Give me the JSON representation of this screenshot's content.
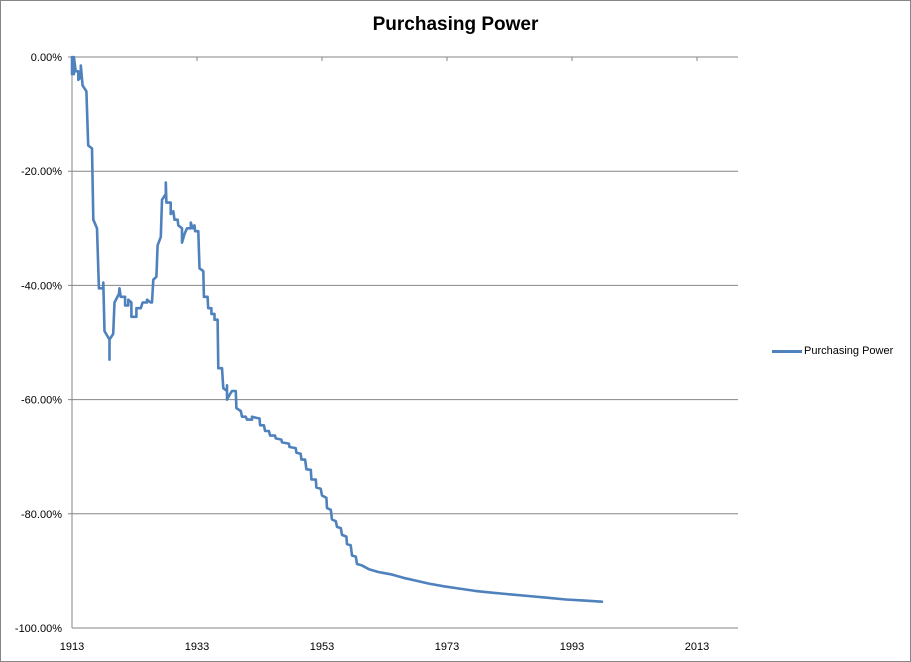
{
  "chart_data": {
    "type": "line",
    "title": "Purchasing Power",
    "xlabel": "",
    "ylabel": "",
    "xlim": [
      1913,
      2013
    ],
    "ylim": [
      -100,
      0
    ],
    "x_ticks": [
      "1913",
      "1933",
      "1953",
      "1973",
      "1993",
      "2013"
    ],
    "y_ticks": [
      "0.00%",
      "-20.00%",
      "-40.00%",
      "-60.00%",
      "-80.00%",
      "-100.00%"
    ],
    "grid": "horizontal",
    "legend_position": "right",
    "series": [
      {
        "name": "Purchasing Power",
        "color": "#4f81bd",
        "points": [
          [
            1913.0,
            0
          ],
          [
            1913.0,
            -3
          ],
          [
            1913.3,
            -3
          ],
          [
            1913.3,
            0
          ],
          [
            1913.6,
            -2.5
          ],
          [
            1914.0,
            -2.5
          ],
          [
            1914.0,
            -4
          ],
          [
            1914.4,
            -3.5
          ],
          [
            1914.4,
            -1.5
          ],
          [
            1914.7,
            -5
          ],
          [
            1915.3,
            -6
          ],
          [
            1915.6,
            -15.5
          ],
          [
            1916.2,
            -16
          ],
          [
            1916.4,
            -28.5
          ],
          [
            1917.0,
            -30
          ],
          [
            1917.3,
            -40.5
          ],
          [
            1918.0,
            -40.5
          ],
          [
            1918.0,
            -39.5
          ],
          [
            1918.2,
            -48
          ],
          [
            1919.0,
            -49.5
          ],
          [
            1919.0,
            -53
          ],
          [
            1919.0,
            -49.5
          ],
          [
            1919.6,
            -48.5
          ],
          [
            1919.8,
            -43
          ],
          [
            1920.5,
            -41.5
          ],
          [
            1920.6,
            -40.5
          ],
          [
            1920.8,
            -42
          ],
          [
            1921.5,
            -42
          ],
          [
            1921.5,
            -43.5
          ],
          [
            1922.0,
            -43.5
          ],
          [
            1922.0,
            -42.5
          ],
          [
            1922.5,
            -43
          ],
          [
            1922.5,
            -45.5
          ],
          [
            1923.3,
            -45.5
          ],
          [
            1923.3,
            -44
          ],
          [
            1924.0,
            -44
          ],
          [
            1924.3,
            -43
          ],
          [
            1925.0,
            -43
          ],
          [
            1925.0,
            -42.5
          ],
          [
            1925.6,
            -43
          ],
          [
            1925.8,
            -43
          ],
          [
            1926.0,
            -39
          ],
          [
            1926.5,
            -38.5
          ],
          [
            1926.7,
            -33
          ],
          [
            1927.2,
            -31.5
          ],
          [
            1927.4,
            -25
          ],
          [
            1928.0,
            -24
          ],
          [
            1928.0,
            -22
          ],
          [
            1928.1,
            -25.5
          ],
          [
            1928.8,
            -25.5
          ],
          [
            1928.8,
            -27.5
          ],
          [
            1929.2,
            -27
          ],
          [
            1929.4,
            -28.5
          ],
          [
            1929.9,
            -28.5
          ],
          [
            1930.0,
            -29.5
          ],
          [
            1930.6,
            -30
          ],
          [
            1930.6,
            -32.5
          ],
          [
            1931.0,
            -31
          ],
          [
            1931.4,
            -30
          ],
          [
            1932.0,
            -30
          ],
          [
            1932.0,
            -29
          ],
          [
            1932.3,
            -30
          ],
          [
            1932.6,
            -29.5
          ],
          [
            1932.7,
            -30.5
          ],
          [
            1933.2,
            -30.5
          ],
          [
            1933.4,
            -37
          ],
          [
            1934.0,
            -37.5
          ],
          [
            1934.1,
            -42
          ],
          [
            1934.7,
            -42
          ],
          [
            1934.8,
            -44
          ],
          [
            1935.3,
            -44
          ],
          [
            1935.3,
            -45
          ],
          [
            1935.8,
            -45
          ],
          [
            1935.8,
            -46
          ],
          [
            1936.3,
            -46
          ],
          [
            1936.4,
            -54.5
          ],
          [
            1937.0,
            -54.5
          ],
          [
            1937.2,
            -58
          ],
          [
            1937.8,
            -58.5
          ],
          [
            1937.8,
            -57.5
          ],
          [
            1937.8,
            -60
          ],
          [
            1938.3,
            -59
          ],
          [
            1938.6,
            -58.5
          ],
          [
            1939.2,
            -58.5
          ],
          [
            1939.3,
            -61.5
          ],
          [
            1940.0,
            -62
          ],
          [
            1940.2,
            -63
          ],
          [
            1940.8,
            -63
          ],
          [
            1941.0,
            -63.5
          ],
          [
            1941.8,
            -63.5
          ],
          [
            1941.8,
            -63
          ],
          [
            1942.5,
            -63.2
          ],
          [
            1943.0,
            -63.3
          ],
          [
            1943.1,
            -64.5
          ],
          [
            1943.7,
            -64.5
          ],
          [
            1943.9,
            -65.5
          ],
          [
            1944.5,
            -65.5
          ],
          [
            1944.7,
            -66.3
          ],
          [
            1945.5,
            -66.3
          ],
          [
            1945.6,
            -66.8
          ],
          [
            1946.5,
            -67
          ],
          [
            1946.6,
            -67.5
          ],
          [
            1947.7,
            -67.7
          ],
          [
            1947.8,
            -68.3
          ],
          [
            1948.8,
            -68.5
          ],
          [
            1948.9,
            -69.3
          ],
          [
            1949.6,
            -69.5
          ],
          [
            1949.7,
            -70.5
          ],
          [
            1950.3,
            -70.5
          ],
          [
            1950.5,
            -72.2
          ],
          [
            1951.2,
            -72.3
          ],
          [
            1951.3,
            -74
          ],
          [
            1952.0,
            -74
          ],
          [
            1952.1,
            -75.4
          ],
          [
            1952.8,
            -75.6
          ],
          [
            1953.0,
            -76.8
          ],
          [
            1953.7,
            -77.2
          ],
          [
            1953.8,
            -79
          ],
          [
            1954.4,
            -79.3
          ],
          [
            1954.6,
            -81
          ],
          [
            1955.2,
            -81.3
          ],
          [
            1955.4,
            -82.3
          ],
          [
            1956.0,
            -82.5
          ],
          [
            1956.2,
            -83.7
          ],
          [
            1956.9,
            -84
          ],
          [
            1957.0,
            -85.3
          ],
          [
            1957.6,
            -85.5
          ],
          [
            1957.8,
            -87.3
          ],
          [
            1958.4,
            -87.5
          ],
          [
            1958.6,
            -88.8
          ],
          [
            1959.3,
            -89
          ],
          [
            1960.5,
            -89.7
          ],
          [
            1962.0,
            -90.2
          ],
          [
            1964.0,
            -90.6
          ],
          [
            1966.0,
            -91.2
          ],
          [
            1968.0,
            -91.7
          ],
          [
            1970.0,
            -92.2
          ],
          [
            1972.5,
            -92.7
          ],
          [
            1975.0,
            -93.1
          ],
          [
            1977.5,
            -93.5
          ],
          [
            1980.0,
            -93.8
          ],
          [
            1983.0,
            -94.1
          ],
          [
            1986.0,
            -94.4
          ],
          [
            1989.0,
            -94.7
          ],
          [
            1992.0,
            -95.0
          ],
          [
            1995.0,
            -95.2
          ],
          [
            1997.8,
            -95.4
          ]
        ]
      }
    ]
  },
  "legend": {
    "items": [
      {
        "label": "Purchasing Power",
        "color": "#4f81bd"
      }
    ]
  }
}
